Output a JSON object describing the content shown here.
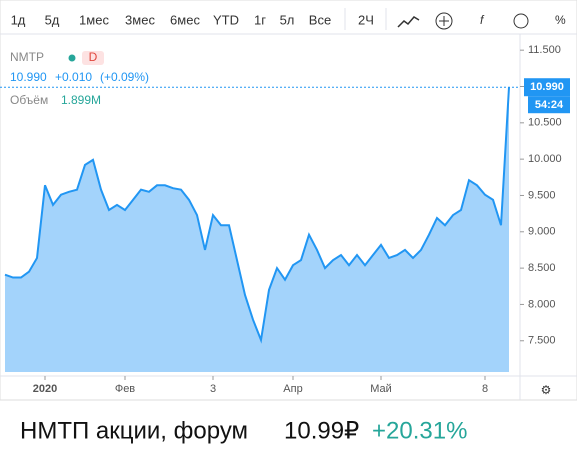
{
  "toolbar": {
    "buttons": [
      "1д",
      "5д",
      "1мес",
      "3мес",
      "6мес",
      "YTD",
      "1г",
      "5л",
      "Все",
      "2Ч"
    ]
  },
  "legend": {
    "symbol": "NMTP",
    "interval": "D",
    "price": "10.990",
    "change": "+0.010",
    "change_pct": "(+0.09%)",
    "volume_label": "Объём",
    "volume": "1.899M"
  },
  "axis_badges": {
    "price": "10.990",
    "countdown": "54:24"
  },
  "footer": {
    "name": "НМТП акции, форум",
    "price": "10.99₽",
    "change": "+20.31%"
  },
  "chart_data": {
    "type": "area",
    "categories": [
      null,
      null,
      null,
      null,
      null,
      "2020",
      null,
      null,
      null,
      null,
      null,
      null,
      null,
      null,
      null,
      "Фев",
      null,
      null,
      null,
      null,
      null,
      null,
      null,
      null,
      null,
      null,
      "3",
      null,
      null,
      null,
      null,
      null,
      null,
      null,
      null,
      null,
      "Апр",
      null,
      null,
      null,
      null,
      null,
      null,
      null,
      null,
      null,
      null,
      "Май",
      null,
      null,
      null,
      null,
      null,
      null,
      null,
      null,
      null,
      null,
      null,
      null,
      "8",
      null,
      null,
      null
    ],
    "series": [
      {
        "name": "NMTP",
        "color": "#2196f3",
        "values": [
          8.41,
          8.37,
          8.37,
          8.45,
          8.64,
          9.64,
          9.37,
          9.51,
          9.55,
          9.58,
          9.92,
          9.99,
          9.58,
          9.3,
          9.37,
          9.3,
          9.44,
          9.58,
          9.55,
          9.64,
          9.64,
          9.6,
          9.58,
          9.44,
          9.23,
          8.75,
          9.23,
          9.09,
          9.09,
          8.61,
          8.13,
          7.79,
          7.51,
          8.2,
          8.5,
          8.34,
          8.54,
          8.61,
          8.96,
          8.75,
          8.5,
          8.61,
          8.68,
          8.54,
          8.68,
          8.54,
          8.68,
          8.82,
          8.64,
          8.68,
          8.75,
          8.64,
          8.75,
          8.96,
          9.19,
          9.09,
          9.23,
          9.3,
          9.71,
          9.64,
          9.51,
          9.44,
          9.09,
          10.99
        ]
      }
    ],
    "ylim": [
      7.07,
      11.64
    ],
    "yticks": [
      {
        "value": 7.5,
        "label": "7.500"
      },
      {
        "value": 8,
        "label": "8.000"
      },
      {
        "value": 8.5,
        "label": "8.500"
      },
      {
        "value": 9,
        "label": "9.000"
      },
      {
        "value": 9.5,
        "label": "9.500"
      },
      {
        "value": 10,
        "label": "10.000"
      },
      {
        "value": 10.5,
        "label": "10.500"
      },
      {
        "value": 11,
        "label": "11.000"
      },
      {
        "value": 11.5,
        "label": "11.500"
      }
    ],
    "area_color": "#a3d3fb"
  }
}
